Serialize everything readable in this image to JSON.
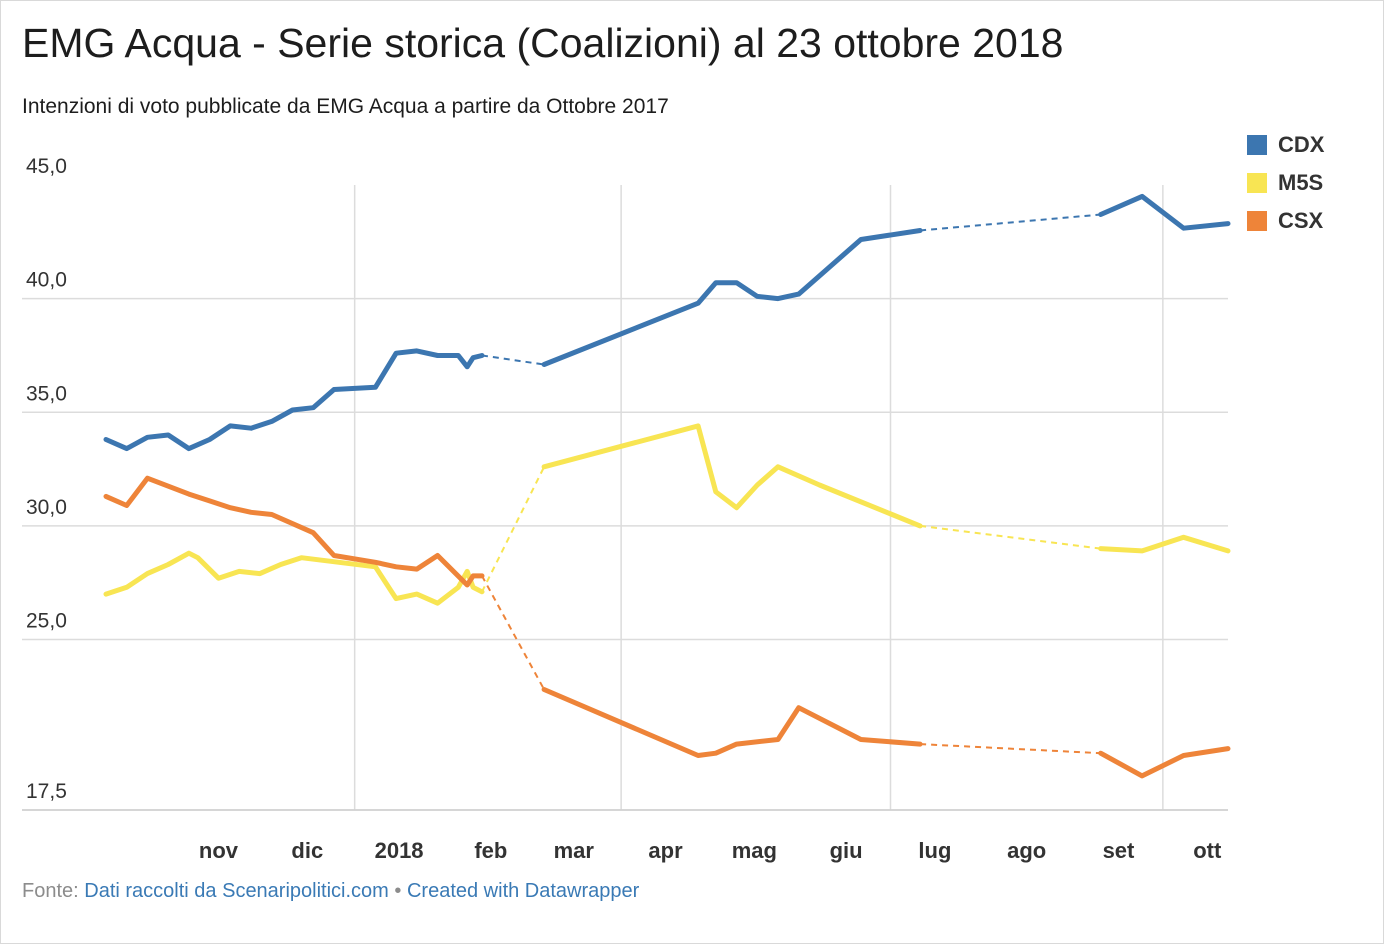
{
  "title": "EMG Acqua - Serie storica (Coalizioni) al 23 ottobre 2018",
  "subtitle": "Intenzioni di voto pubblicate da EMG Acqua a partire da Ottobre 2017",
  "footer": {
    "prefix": "Fonte:",
    "source_link": "Dati raccolti da Scenaripolitici.com",
    "separator": "•",
    "credit_link": "Created with Datawrapper"
  },
  "colors": {
    "CDX": "#3c76b0",
    "M5S": "#f8e553",
    "CSX": "#ee8439",
    "grid": "#dcdcdc",
    "axis_text": "#333333"
  },
  "chart_data": {
    "type": "line",
    "title": "EMG Acqua - Serie storica (Coalizioni) al 23 ottobre 2018",
    "xlabel": "",
    "ylabel": "",
    "legend_position": "top-right",
    "grid": true,
    "ylim": [
      17.5,
      45.0
    ],
    "xlim": [
      "2017-10-09",
      "2018-10-23"
    ],
    "y_ticks": [
      {
        "value": 45.0,
        "label": "45,0"
      },
      {
        "value": 40.0,
        "label": "40,0"
      },
      {
        "value": 35.0,
        "label": "35,0"
      },
      {
        "value": 30.0,
        "label": "30,0"
      },
      {
        "value": 25.0,
        "label": "25,0"
      },
      {
        "value": 17.5,
        "label": "17,5"
      }
    ],
    "x_ticks": [
      {
        "date": "2017-11-01",
        "label": "nov"
      },
      {
        "date": "2017-12-01",
        "label": "dic"
      },
      {
        "date": "2018-01-01",
        "label": "2018"
      },
      {
        "date": "2018-02-01",
        "label": "feb"
      },
      {
        "date": "2018-03-01",
        "label": "mar"
      },
      {
        "date": "2018-04-01",
        "label": "apr"
      },
      {
        "date": "2018-05-01",
        "label": "mag"
      },
      {
        "date": "2018-06-01",
        "label": "giu"
      },
      {
        "date": "2018-07-01",
        "label": "lug"
      },
      {
        "date": "2018-08-01",
        "label": "ago"
      },
      {
        "date": "2018-09-01",
        "label": "set"
      },
      {
        "date": "2018-10-01",
        "label": "ott"
      }
    ],
    "vertical_gridlines": [
      "2018-01-01",
      "2018-04-01",
      "2018-07-01",
      "2018-10-01"
    ],
    "gaps": [
      {
        "from": "2018-02-13",
        "to": "2018-03-06"
      },
      {
        "from": "2018-07-11",
        "to": "2018-09-10"
      }
    ],
    "series": [
      {
        "name": "CDX",
        "points": [
          {
            "x": "2017-10-09",
            "y": 33.8
          },
          {
            "x": "2017-10-16",
            "y": 33.4
          },
          {
            "x": "2017-10-23",
            "y": 33.9
          },
          {
            "x": "2017-10-30",
            "y": 34.0
          },
          {
            "x": "2017-11-06",
            "y": 33.4
          },
          {
            "x": "2017-11-13",
            "y": 33.8
          },
          {
            "x": "2017-11-20",
            "y": 34.4
          },
          {
            "x": "2017-11-27",
            "y": 34.3
          },
          {
            "x": "2017-12-04",
            "y": 34.6
          },
          {
            "x": "2017-12-11",
            "y": 35.1
          },
          {
            "x": "2017-12-18",
            "y": 35.2
          },
          {
            "x": "2017-12-25",
            "y": 36.0
          },
          {
            "x": "2018-01-08",
            "y": 36.1
          },
          {
            "x": "2018-01-15",
            "y": 37.6
          },
          {
            "x": "2018-01-22",
            "y": 37.7
          },
          {
            "x": "2018-01-29",
            "y": 37.5
          },
          {
            "x": "2018-02-05",
            "y": 37.5
          },
          {
            "x": "2018-02-08",
            "y": 37.0
          },
          {
            "x": "2018-02-10",
            "y": 37.4
          },
          {
            "x": "2018-02-13",
            "y": 37.5
          },
          {
            "x": "2018-03-06",
            "y": 37.1
          },
          {
            "x": "2018-04-27",
            "y": 39.8
          },
          {
            "x": "2018-05-03",
            "y": 40.7
          },
          {
            "x": "2018-05-10",
            "y": 40.7
          },
          {
            "x": "2018-05-17",
            "y": 40.1
          },
          {
            "x": "2018-05-24",
            "y": 40.0
          },
          {
            "x": "2018-05-31",
            "y": 40.2
          },
          {
            "x": "2018-06-21",
            "y": 42.6
          },
          {
            "x": "2018-07-11",
            "y": 43.0
          },
          {
            "x": "2018-09-10",
            "y": 43.7
          },
          {
            "x": "2018-09-24",
            "y": 44.5
          },
          {
            "x": "2018-10-08",
            "y": 43.1
          },
          {
            "x": "2018-10-23",
            "y": 43.3
          }
        ]
      },
      {
        "name": "M5S",
        "points": [
          {
            "x": "2017-10-09",
            "y": 27.0
          },
          {
            "x": "2017-10-16",
            "y": 27.3
          },
          {
            "x": "2017-10-23",
            "y": 27.9
          },
          {
            "x": "2017-10-30",
            "y": 28.3
          },
          {
            "x": "2017-11-06",
            "y": 28.8
          },
          {
            "x": "2017-11-09",
            "y": 28.6
          },
          {
            "x": "2017-11-16",
            "y": 27.7
          },
          {
            "x": "2017-11-23",
            "y": 28.0
          },
          {
            "x": "2017-11-30",
            "y": 27.9
          },
          {
            "x": "2017-12-07",
            "y": 28.3
          },
          {
            "x": "2017-12-14",
            "y": 28.6
          },
          {
            "x": "2018-01-08",
            "y": 28.2
          },
          {
            "x": "2018-01-15",
            "y": 26.8
          },
          {
            "x": "2018-01-22",
            "y": 27.0
          },
          {
            "x": "2018-01-29",
            "y": 26.6
          },
          {
            "x": "2018-02-05",
            "y": 27.3
          },
          {
            "x": "2018-02-08",
            "y": 28.0
          },
          {
            "x": "2018-02-10",
            "y": 27.3
          },
          {
            "x": "2018-02-13",
            "y": 27.1
          },
          {
            "x": "2018-03-06",
            "y": 32.6
          },
          {
            "x": "2018-04-27",
            "y": 34.4
          },
          {
            "x": "2018-05-03",
            "y": 31.5
          },
          {
            "x": "2018-05-10",
            "y": 30.8
          },
          {
            "x": "2018-05-17",
            "y": 31.8
          },
          {
            "x": "2018-05-24",
            "y": 32.6
          },
          {
            "x": "2018-06-07",
            "y": 31.8
          },
          {
            "x": "2018-07-11",
            "y": 30.0
          },
          {
            "x": "2018-09-10",
            "y": 29.0
          },
          {
            "x": "2018-09-24",
            "y": 28.9
          },
          {
            "x": "2018-10-08",
            "y": 29.5
          },
          {
            "x": "2018-10-23",
            "y": 28.9
          }
        ]
      },
      {
        "name": "CSX",
        "points": [
          {
            "x": "2017-10-09",
            "y": 31.3
          },
          {
            "x": "2017-10-16",
            "y": 30.9
          },
          {
            "x": "2017-10-23",
            "y": 32.1
          },
          {
            "x": "2017-11-06",
            "y": 31.4
          },
          {
            "x": "2017-11-13",
            "y": 31.1
          },
          {
            "x": "2017-11-20",
            "y": 30.8
          },
          {
            "x": "2017-11-27",
            "y": 30.6
          },
          {
            "x": "2017-12-04",
            "y": 30.5
          },
          {
            "x": "2017-12-18",
            "y": 29.7
          },
          {
            "x": "2017-12-25",
            "y": 28.7
          },
          {
            "x": "2018-01-08",
            "y": 28.4
          },
          {
            "x": "2018-01-15",
            "y": 28.2
          },
          {
            "x": "2018-01-22",
            "y": 28.1
          },
          {
            "x": "2018-01-29",
            "y": 28.7
          },
          {
            "x": "2018-02-08",
            "y": 27.4
          },
          {
            "x": "2018-02-10",
            "y": 27.8
          },
          {
            "x": "2018-02-13",
            "y": 27.8
          },
          {
            "x": "2018-03-06",
            "y": 22.8
          },
          {
            "x": "2018-04-27",
            "y": 19.9
          },
          {
            "x": "2018-05-03",
            "y": 20.0
          },
          {
            "x": "2018-05-10",
            "y": 20.4
          },
          {
            "x": "2018-05-24",
            "y": 20.6
          },
          {
            "x": "2018-05-31",
            "y": 22.0
          },
          {
            "x": "2018-06-21",
            "y": 20.6
          },
          {
            "x": "2018-07-11",
            "y": 20.4
          },
          {
            "x": "2018-09-10",
            "y": 20.0
          },
          {
            "x": "2018-09-24",
            "y": 19.0
          },
          {
            "x": "2018-10-08",
            "y": 19.9
          },
          {
            "x": "2018-10-23",
            "y": 20.2
          }
        ]
      }
    ]
  }
}
